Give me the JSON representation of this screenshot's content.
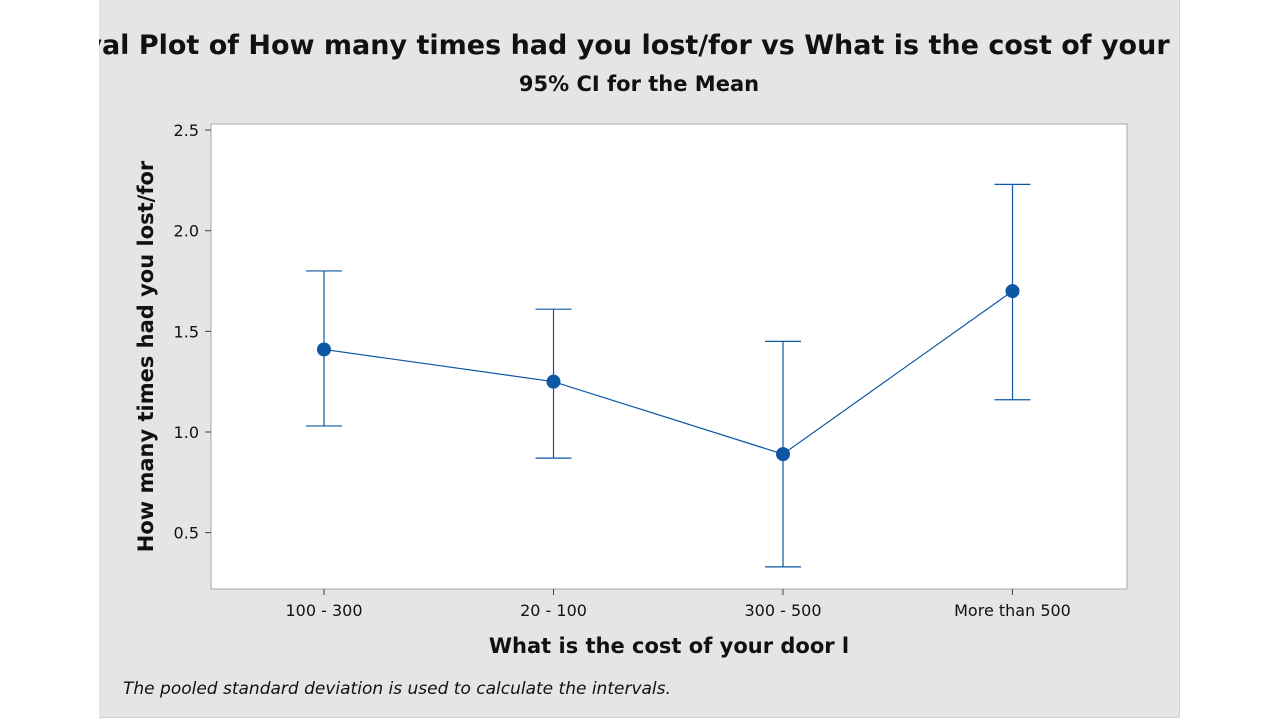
{
  "chart_data": {
    "type": "interval",
    "title": "Interval Plot of How many times had you lost/for vs What is the cost of your door l",
    "subtitle": "95% CI for the Mean",
    "xlabel": "What is the cost of your door l",
    "ylabel": "How many times had you lost/for",
    "categories": [
      "100 - 300",
      "20 - 100",
      "300 - 500",
      "More than 500"
    ],
    "means": [
      1.41,
      1.25,
      0.89,
      1.7
    ],
    "lower": [
      1.03,
      0.87,
      0.33,
      1.16
    ],
    "upper": [
      1.8,
      1.61,
      1.45,
      2.23
    ],
    "ylim": [
      0.22,
      2.53
    ],
    "yticks": [
      "0.5",
      "1.0",
      "1.5",
      "2.0",
      "2.5"
    ],
    "footnote": "The pooled standard deviation is used to calculate the intervals.",
    "colors": {
      "series": "#0d57a5",
      "panel": "#e5e5e5",
      "plot": "#ffffff"
    }
  }
}
